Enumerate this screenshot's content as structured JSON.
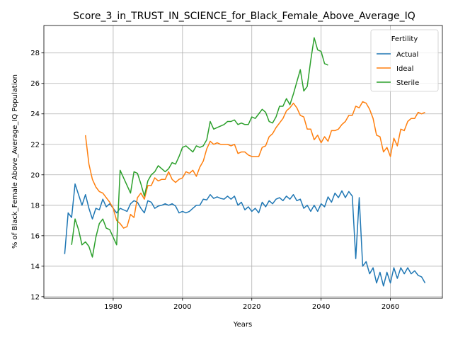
{
  "chart_data": {
    "type": "line",
    "title": "Score_3_in_TRUST_IN_SCIENCE_for_Black_Female_Above_Average_IQ",
    "xlabel": "Years",
    "ylabel": "% of Black_Female Above_Average_IQ Population",
    "xlim": [
      1960,
      2075
    ],
    "ylim": [
      11.9,
      29.8
    ],
    "xticks": [
      1980,
      2000,
      2020,
      2040,
      2060
    ],
    "yticks": [
      12,
      14,
      16,
      18,
      20,
      22,
      24,
      26,
      28
    ],
    "grid": true,
    "legend": {
      "title": "Fertility",
      "placement": "top-right"
    },
    "series": [
      {
        "name": "Actual",
        "color": "#1f77b4",
        "x_start": 1966,
        "values": [
          14.8,
          17.5,
          17.2,
          19.4,
          18.7,
          18.0,
          18.7,
          17.8,
          17.1,
          17.8,
          17.7,
          18.4,
          17.9,
          18.1,
          17.8,
          17.5,
          17.8,
          17.7,
          17.6,
          18.1,
          18.3,
          18.2,
          17.8,
          17.5,
          18.3,
          18.2,
          17.8,
          17.95,
          18.0,
          18.1,
          18.0,
          18.1,
          17.95,
          17.5,
          17.6,
          17.5,
          17.6,
          17.8,
          18.0,
          18.0,
          18.4,
          18.35,
          18.7,
          18.45,
          18.55,
          18.45,
          18.4,
          18.6,
          18.4,
          18.6,
          18.0,
          18.2,
          17.7,
          17.9,
          17.6,
          17.8,
          17.5,
          18.2,
          17.9,
          18.3,
          18.1,
          18.4,
          18.5,
          18.3,
          18.6,
          18.4,
          18.7,
          18.3,
          18.4,
          17.8,
          18.0,
          17.6,
          18.0,
          17.6,
          18.1,
          17.9,
          18.55,
          18.2,
          18.8,
          18.5,
          18.95,
          18.5,
          18.9,
          18.6,
          14.5,
          18.5,
          14.0,
          14.3,
          13.5,
          13.9,
          12.9,
          13.6,
          12.7,
          13.6,
          12.9,
          13.9,
          13.2,
          13.9,
          13.5,
          13.9,
          13.5,
          13.7,
          13.4,
          13.3,
          12.9
        ]
      },
      {
        "name": "Ideal",
        "color": "#ff7f0e",
        "x_start": 1972,
        "values": [
          22.6,
          20.7,
          19.7,
          19.2,
          18.9,
          18.8,
          18.5,
          18.2,
          17.8,
          17.0,
          16.8,
          16.5,
          16.6,
          17.4,
          17.2,
          18.5,
          18.8,
          18.4,
          19.3,
          19.3,
          19.8,
          19.6,
          19.7,
          19.7,
          20.2,
          19.7,
          19.5,
          19.7,
          19.8,
          20.2,
          20.1,
          20.3,
          19.9,
          20.5,
          20.9,
          21.7,
          22.2,
          22.0,
          22.1,
          22.0,
          22.0,
          22.0,
          21.9,
          22.0,
          21.4,
          21.5,
          21.5,
          21.3,
          21.2,
          21.2,
          21.2,
          21.8,
          21.9,
          22.5,
          22.7,
          23.1,
          23.4,
          23.7,
          24.2,
          24.4,
          24.7,
          24.4,
          23.9,
          23.8,
          23.0,
          23.0,
          22.3,
          22.6,
          22.1,
          22.5,
          22.2,
          22.9,
          22.9,
          23.0,
          23.3,
          23.5,
          23.9,
          23.9,
          24.5,
          24.4,
          24.8,
          24.7,
          24.3,
          23.7,
          22.6,
          22.5,
          21.5,
          21.8,
          21.2,
          22.4,
          21.9,
          23.0,
          22.9,
          23.5,
          23.7,
          23.7,
          24.1,
          24.0,
          24.1
        ]
      },
      {
        "name": "Sterile",
        "color": "#2ca02c",
        "x_start": 1968,
        "values": [
          15.4,
          17.1,
          16.4,
          15.4,
          15.6,
          15.3,
          14.6,
          15.9,
          16.8,
          17.1,
          16.5,
          16.4,
          15.9,
          15.4,
          20.3,
          19.8,
          19.3,
          18.8,
          20.2,
          20.1,
          19.4,
          18.6,
          19.6,
          20.0,
          20.2,
          20.6,
          20.4,
          20.2,
          20.4,
          20.8,
          20.7,
          21.2,
          21.8,
          21.9,
          21.7,
          21.5,
          21.9,
          21.8,
          21.9,
          22.3,
          23.5,
          23.0,
          23.1,
          23.2,
          23.3,
          23.5,
          23.5,
          23.6,
          23.3,
          23.4,
          23.3,
          23.3,
          23.8,
          23.7,
          24.0,
          24.3,
          24.1,
          23.5,
          23.4,
          23.8,
          24.5,
          24.5,
          25.0,
          24.6,
          25.3,
          26.1,
          26.9,
          25.5,
          25.8,
          27.5,
          29.0,
          28.2,
          28.1,
          27.3,
          27.2
        ]
      }
    ]
  }
}
